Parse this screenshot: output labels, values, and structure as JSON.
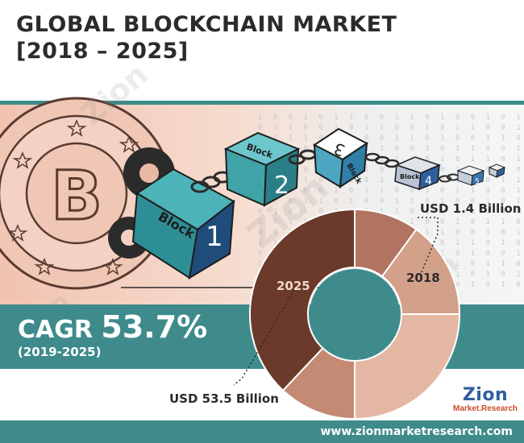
{
  "header": {
    "title_line1": "GLOBAL BLOCKCHAIN MARKET",
    "title_line2": "[2018 – 2025]"
  },
  "illustration": {
    "blocks": [
      "Block",
      "Block",
      "Block",
      "Block"
    ],
    "block_numbers": [
      "1",
      "2",
      "3",
      "4",
      "5"
    ],
    "coin_icon": "bitcoin-coin-icon",
    "gear_icon": "gear-icon",
    "chain_icon": "chain-link-icon"
  },
  "cagr": {
    "label": "CAGR",
    "value": "53.7%",
    "period": "(2019-2025)"
  },
  "chart_data": {
    "type": "pie",
    "variant": "donut",
    "series": [
      {
        "ring_label": "2018",
        "callout": "USD 1.4 Billion",
        "slices_fraction": [
          0.12,
          0.88
        ]
      },
      {
        "ring_label": "2025",
        "callout": "USD 53.5 Billion",
        "slices_fraction": [
          0.37,
          0.12,
          0.38,
          0.13
        ]
      }
    ],
    "colors": [
      "#6b3a2a",
      "#a7725e",
      "#d6a792",
      "#c08068",
      "#b98270"
    ]
  },
  "watermark": {
    "text_main": "Zion",
    "text_sub": "Market Research"
  },
  "logo": {
    "main": "Zion",
    "sub": "Market.Research"
  },
  "footer": {
    "url": "www.zionmarketresearch.com"
  },
  "colors": {
    "teal": "#3f8b8c",
    "title": "#2b2b2b",
    "donut_dark": "#6b3a2a",
    "donut_light": "#d6a792"
  }
}
